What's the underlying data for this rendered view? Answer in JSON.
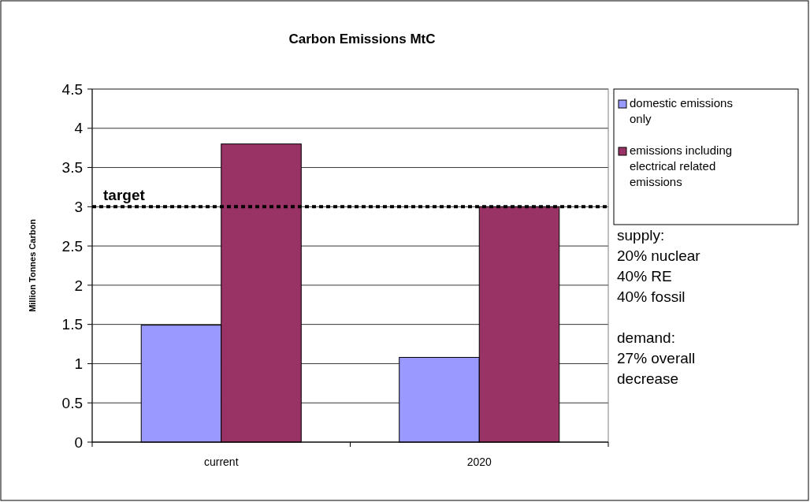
{
  "chart_data": {
    "type": "bar",
    "title": "Carbon Emissions MtC",
    "ylabel": "Million Tonnes Carbon",
    "categories": [
      "current",
      "2020"
    ],
    "series": [
      {
        "name": "domestic emissions only",
        "color": "#9999ff",
        "values": [
          1.49,
          1.08
        ]
      },
      {
        "name": "emissions including electrical related emissions",
        "color": "#993366",
        "values": [
          3.8,
          3.0
        ]
      }
    ],
    "ylim": [
      0,
      4.5
    ],
    "yticks": [
      0,
      0.5,
      1,
      1.5,
      2,
      2.5,
      3,
      3.5,
      4,
      4.5
    ],
    "grid": "y",
    "legend": "right",
    "ref_lines": [
      {
        "axis": "y",
        "value": 3,
        "label": "target",
        "color": "#000000",
        "line_style": "dotted"
      }
    ],
    "annotations": [
      "supply:\n20% nuclear\n40% RE\n40% fossil",
      "demand:\n27% overall\ndecrease"
    ]
  }
}
